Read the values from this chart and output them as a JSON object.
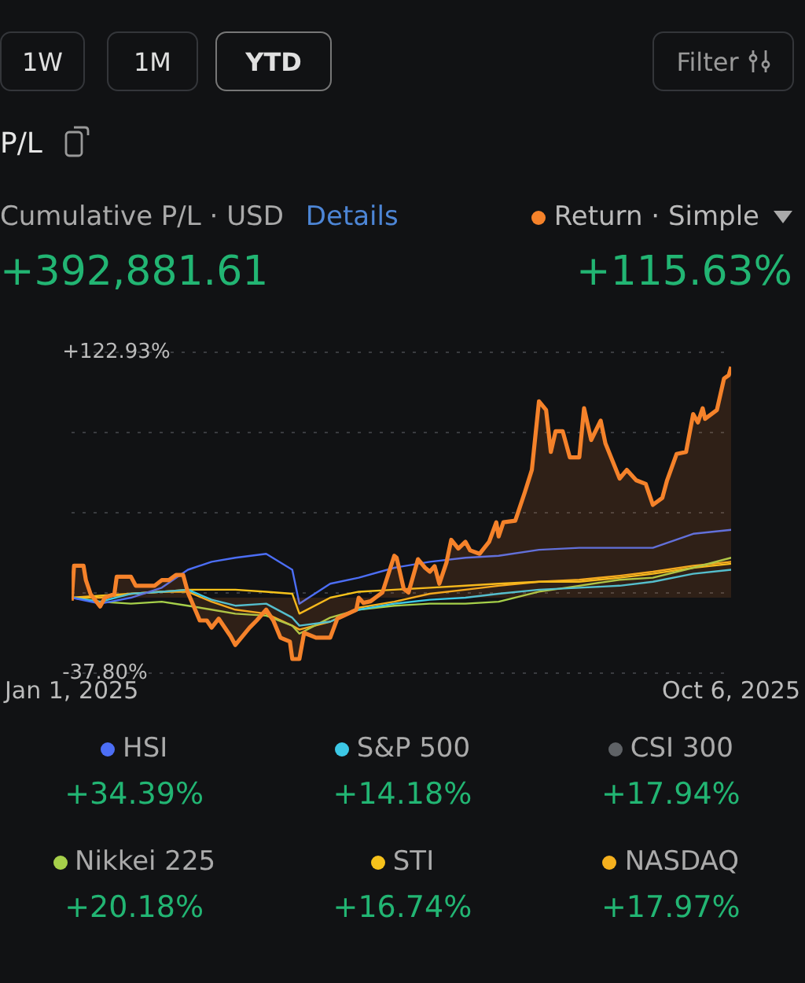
{
  "chart_data": {
    "type": "line",
    "title": "P/L",
    "subtitle": "Cumulative P/L · USD",
    "annotations": [
      "1W",
      "1M",
      "YTD",
      "Filter",
      "Details",
      "+392,881.61",
      "+34.39%",
      "+14.18%",
      "+17.94%",
      "+20.18%",
      "+16.74%",
      "+17.97%"
    ],
    "x": [
      "2025-01-01",
      "2025-01-13",
      "2025-01-26",
      "2025-02-08",
      "2025-02-19",
      "2025-03-01",
      "2025-03-11",
      "2025-03-24",
      "2025-04-04",
      "2025-04-07",
      "2025-04-20",
      "2025-05-02",
      "2025-05-17",
      "2025-06-01",
      "2025-06-16",
      "2025-06-30",
      "2025-07-17",
      "2025-08-03",
      "2025-08-20",
      "2025-09-03",
      "2025-09-20",
      "2025-10-06"
    ],
    "xlim": [
      "2025-01-01",
      "2025-10-06"
    ],
    "xticks": [
      {
        "value": "2025-01-01",
        "label": "Jan 1, 2025"
      },
      {
        "value": "2025-10-06",
        "label": "Oct 6, 2025"
      }
    ],
    "ylim": [
      -37.8,
      122.93
    ],
    "yticks": [
      {
        "value": -37.8,
        "label": "-37.80%"
      },
      {
        "value": 2.38,
        "label": null
      },
      {
        "value": 42.56,
        "label": null
      },
      {
        "value": 82.75,
        "label": null
      },
      {
        "value": 122.93,
        "label": "+122.93%"
      }
    ],
    "grid": "y",
    "legend": "bottom",
    "marker": "none",
    "line_style": "solid",
    "series": [
      {
        "name": "Return · Simple",
        "type": "area",
        "color": "#f5822a",
        "x": [
          "2025-01-01",
          "2025-01-02",
          "2025-01-06",
          "2025-01-07",
          "2025-01-09",
          "2025-01-13",
          "2025-01-15",
          "2025-01-19",
          "2025-01-20",
          "2025-01-26",
          "2025-01-28",
          "2025-02-05",
          "2025-02-08",
          "2025-02-11",
          "2025-02-14",
          "2025-02-17",
          "2025-02-19",
          "2025-02-24",
          "2025-02-27",
          "2025-03-01",
          "2025-03-04",
          "2025-03-09",
          "2025-03-11",
          "2025-03-17",
          "2025-03-20",
          "2025-03-24",
          "2025-03-27",
          "2025-03-30",
          "2025-04-03",
          "2025-04-04",
          "2025-04-07",
          "2025-04-09",
          "2025-04-14",
          "2025-04-20",
          "2025-04-23",
          "2025-05-01",
          "2025-05-02",
          "2025-05-04",
          "2025-05-07",
          "2025-05-12",
          "2025-05-17",
          "2025-05-18",
          "2025-05-21",
          "2025-05-23",
          "2025-05-27",
          "2025-05-30",
          "2025-06-01",
          "2025-06-03",
          "2025-06-05",
          "2025-06-08",
          "2025-06-10",
          "2025-06-13",
          "2025-06-16",
          "2025-06-18",
          "2025-06-22",
          "2025-06-26",
          "2025-06-29",
          "2025-06-30",
          "2025-07-02",
          "2025-07-07",
          "2025-07-11",
          "2025-07-14",
          "2025-07-17",
          "2025-07-20",
          "2025-07-22",
          "2025-07-24",
          "2025-07-27",
          "2025-07-30",
          "2025-08-03",
          "2025-08-05",
          "2025-08-08",
          "2025-08-12",
          "2025-08-14",
          "2025-08-20",
          "2025-08-23",
          "2025-08-27",
          "2025-08-31",
          "2025-09-03",
          "2025-09-07",
          "2025-09-09",
          "2025-09-13",
          "2025-09-17",
          "2025-09-20",
          "2025-09-22",
          "2025-09-24",
          "2025-09-25",
          "2025-09-30",
          "2025-10-03",
          "2025-10-05",
          "2025-10-06"
        ],
        "values": [
          -1.5,
          16,
          16,
          8.8,
          1.8,
          -4.4,
          0,
          1.8,
          10.5,
          10.5,
          6,
          6,
          8.8,
          8.8,
          11.4,
          11.4,
          2.6,
          -11.4,
          -11.4,
          -15,
          -10.5,
          -19.3,
          -23.7,
          -15,
          -11.4,
          -6,
          -11.4,
          -20,
          -22,
          -30.7,
          -30.7,
          -17.6,
          -20,
          -20,
          -10.5,
          -6,
          0,
          -2.6,
          -1.8,
          2.6,
          21,
          20,
          4.4,
          2.6,
          19.3,
          15,
          13,
          15.8,
          7,
          17.6,
          29,
          24.6,
          28,
          23.7,
          22,
          28,
          37.8,
          30.7,
          37.8,
          38.6,
          52.7,
          64,
          98.4,
          94,
          73,
          83.4,
          83.4,
          70.3,
          70.3,
          94.9,
          79,
          88.7,
          77.3,
          59.7,
          64,
          58.8,
          57,
          46.5,
          50,
          58.8,
          72,
          73,
          92,
          87.8,
          94.9,
          89.6,
          94,
          109.8,
          111.5,
          115.63
        ],
        "value_labels": [
          null,
          null,
          null,
          null,
          null,
          null,
          null,
          null,
          null,
          null,
          null,
          null,
          null,
          null,
          null,
          null,
          null,
          null,
          null,
          null,
          null,
          null,
          null,
          null,
          null,
          null,
          null,
          null,
          null,
          null,
          null,
          null,
          null,
          null,
          null,
          null,
          null,
          null,
          null,
          null,
          null,
          null,
          null,
          null,
          null,
          null,
          null,
          null,
          null,
          null,
          null,
          null,
          null,
          null,
          null,
          null,
          null,
          null,
          null,
          null,
          null,
          null,
          null,
          null,
          null,
          null,
          null,
          null,
          null,
          null,
          null,
          null,
          null,
          null,
          null,
          null,
          null,
          null,
          null,
          null,
          null,
          null,
          null,
          null,
          null,
          null,
          null,
          null,
          null,
          "+115.63%"
        ]
      },
      {
        "name": "HSI",
        "color": "#4c6ef5",
        "values": [
          0,
          -3,
          0,
          5,
          14,
          18,
          20,
          22,
          14,
          -3,
          7,
          10,
          15,
          18,
          20,
          21,
          24,
          25,
          25,
          25,
          32,
          34
        ]
      },
      {
        "name": "S&P 500",
        "color": "#3cc8e6",
        "values": [
          0,
          -2,
          2,
          3,
          4,
          -1,
          -4,
          -3,
          -10,
          -14,
          -12,
          -6,
          -3,
          -1,
          0,
          2,
          4,
          5,
          6,
          8,
          12,
          14
        ]
      },
      {
        "name": "CSI 300",
        "color": "#5f6266",
        "values": [
          null,
          null,
          null,
          null,
          null,
          null,
          null,
          null,
          null,
          null,
          null,
          null,
          null,
          null,
          null,
          null,
          null,
          null,
          null,
          null,
          null,
          null
        ]
      },
      {
        "name": "Nikkei 225",
        "color": "#a6d04a",
        "values": [
          0,
          -2,
          -3,
          -2,
          -4,
          -6,
          -8,
          -9,
          -14,
          -18,
          -10,
          -6,
          -4,
          -3,
          -3,
          -2,
          3,
          6,
          9,
          10,
          15,
          20
        ]
      },
      {
        "name": "STI",
        "color": "#f6c21b",
        "values": [
          0,
          1,
          2,
          3,
          4,
          4,
          4,
          3,
          2,
          -8,
          0,
          3,
          4,
          5,
          6,
          7,
          8,
          8,
          10,
          12,
          15,
          17
        ]
      },
      {
        "name": "NASDAQ",
        "color": "#f5b01e",
        "values": [
          0,
          0,
          2,
          3,
          3,
          -2,
          -6,
          -8,
          -14,
          -16,
          -12,
          -5,
          -2,
          2,
          4,
          6,
          8,
          9,
          11,
          13,
          16,
          18
        ]
      }
    ]
  }
}
